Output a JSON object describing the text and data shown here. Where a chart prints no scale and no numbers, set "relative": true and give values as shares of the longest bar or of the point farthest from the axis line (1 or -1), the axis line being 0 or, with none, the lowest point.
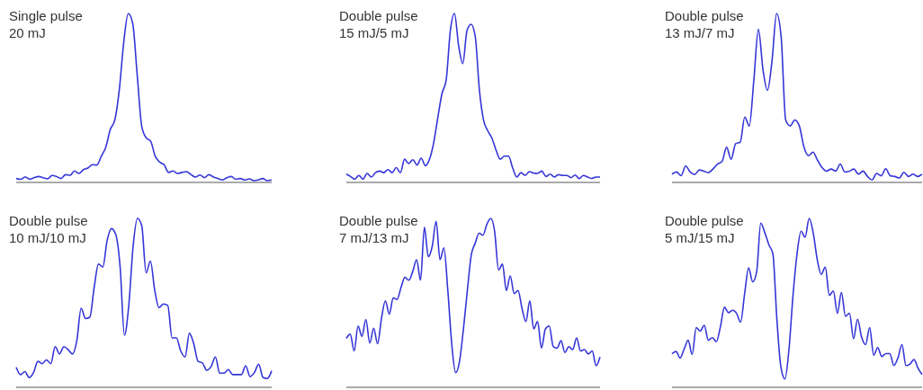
{
  "chart_data": [
    {
      "type": "line",
      "title": "Single pulse",
      "subtitle": "20 mJ",
      "relative": true,
      "categories": [
        null,
        null,
        null,
        null,
        null,
        null,
        null,
        null,
        null,
        null,
        null,
        null,
        null,
        null,
        null,
        null,
        null,
        null,
        null,
        null,
        null,
        null,
        null,
        null,
        null,
        null,
        null,
        null,
        null,
        null,
        null,
        null,
        null,
        null,
        null,
        null,
        null,
        null,
        null,
        null,
        null,
        null,
        null,
        null,
        null,
        null,
        null,
        null,
        null,
        null,
        null,
        null,
        null,
        null,
        null,
        null,
        null,
        null
      ],
      "series": [
        {
          "color": "#3535d8",
          "values": [
            0.018,
            0.013,
            0.027,
            0.014,
            0.023,
            0.03,
            0.023,
            0.016,
            0.036,
            0.03,
            0.018,
            0.041,
            0.036,
            0.063,
            0.048,
            0.071,
            0.08,
            0.1,
            0.098,
            0.152,
            0.205,
            0.31,
            0.366,
            0.545,
            0.83,
            1,
            0.94,
            0.634,
            0.33,
            0.26,
            0.24,
            0.152,
            0.116,
            0.1,
            0.054,
            0.063,
            0.048,
            0.054,
            0.059,
            0.041,
            0.027,
            0.039,
            0.023,
            0.041,
            0.027,
            0.018,
            0.009,
            0.023,
            0.03,
            0.013,
            0.018,
            0.009,
            0.016,
            0.005,
            0.009,
            0.018,
            0.005,
            0.009
          ]
        }
      ]
    },
    {
      "type": "line",
      "title": "Double pulse",
      "subtitle": "15 mJ/5 mJ",
      "relative": true,
      "categories": [
        null,
        null,
        null,
        null,
        null,
        null,
        null,
        null,
        null,
        null,
        null,
        null,
        null,
        null,
        null,
        null,
        null,
        null,
        null,
        null,
        null,
        null,
        null,
        null,
        null,
        null,
        null,
        null,
        null,
        null,
        null,
        null,
        null,
        null,
        null,
        null,
        null,
        null,
        null,
        null,
        null,
        null,
        null,
        null,
        null,
        null,
        null,
        null,
        null,
        null,
        null,
        null,
        null,
        null,
        null,
        null,
        null,
        null,
        null,
        null,
        null,
        null
      ],
      "series": [
        {
          "color": "#3535d8",
          "values": [
            0.044,
            0.03,
            0.014,
            0.036,
            0.014,
            0.048,
            0.027,
            0.053,
            0.062,
            0.053,
            0.071,
            0.053,
            0.083,
            0.053,
            0.133,
            0.107,
            0.13,
            0.098,
            0.139,
            0.094,
            0.133,
            0.231,
            0.382,
            0.524,
            0.604,
            0.897,
            1,
            0.808,
            0.702,
            0.897,
            0.936,
            0.861,
            0.542,
            0.364,
            0.302,
            0.258,
            0.186,
            0.133,
            0.151,
            0.151,
            0.08,
            0.027,
            0.053,
            0.036,
            0.059,
            0.05,
            0.048,
            0.062,
            0.03,
            0.044,
            0.027,
            0.041,
            0.036,
            0.036,
            0.023,
            0.039,
            0.018,
            0.036,
            0.027,
            0.018,
            0.027,
            0.027
          ]
        }
      ]
    },
    {
      "type": "line",
      "title": "Double pulse",
      "subtitle": "13 mJ/7 mJ",
      "relative": true,
      "categories": [
        null,
        null,
        null,
        null,
        null,
        null,
        null,
        null,
        null,
        null,
        null,
        null,
        null,
        null,
        null,
        null,
        null,
        null,
        null,
        null,
        null,
        null,
        null,
        null,
        null,
        null,
        null,
        null,
        null,
        null,
        null,
        null,
        null,
        null,
        null,
        null,
        null,
        null,
        null,
        null,
        null,
        null,
        null,
        null,
        null,
        null,
        null,
        null,
        null,
        null,
        null,
        null,
        null,
        null,
        null,
        null
      ],
      "series": [
        {
          "color": "#3535d8",
          "values": [
            0.044,
            0.057,
            0.035,
            0.092,
            0.057,
            0.042,
            0.069,
            0.062,
            0.053,
            0.074,
            0.104,
            0.119,
            0.204,
            0.133,
            0.225,
            0.234,
            0.384,
            0.331,
            0.605,
            0.906,
            0.667,
            0.543,
            0.72,
            1,
            0.862,
            0.366,
            0.331,
            0.366,
            0.331,
            0.207,
            0.154,
            0.175,
            0.127,
            0.083,
            0.062,
            0.074,
            0.062,
            0.104,
            0.057,
            0.062,
            0.074,
            0.044,
            0.062,
            0.03,
            0.009,
            0.048,
            0.034,
            0.076,
            0.034,
            0.03,
            0.021,
            0.055,
            0.03,
            0.044,
            0.03,
            0.044
          ]
        }
      ]
    },
    {
      "type": "line",
      "title": "Double pulse",
      "subtitle": "10 mJ/10 mJ",
      "relative": true,
      "categories": [
        null,
        null,
        null,
        null,
        null,
        null,
        null,
        null,
        null,
        null,
        null,
        null,
        null,
        null,
        null,
        null,
        null,
        null,
        null,
        null,
        null,
        null,
        null,
        null,
        null,
        null,
        null,
        null,
        null,
        null,
        null,
        null,
        null,
        null,
        null,
        null,
        null,
        null,
        null,
        null,
        null,
        null,
        null,
        null,
        null,
        null,
        null,
        null,
        null,
        null,
        null,
        null,
        null,
        null,
        null,
        null,
        null,
        null,
        null,
        null
      ],
      "series": [
        {
          "color": "#3535d8",
          "values": [
            0.114,
            0.07,
            0.088,
            0.053,
            0.082,
            0.149,
            0.135,
            0.158,
            0.135,
            0.237,
            0.193,
            0.237,
            0.219,
            0.193,
            0.272,
            0.465,
            0.404,
            0.412,
            0.588,
            0.728,
            0.711,
            0.868,
            0.939,
            0.904,
            0.711,
            0.304,
            0.482,
            0.833,
            1,
            0.956,
            0.675,
            0.746,
            0.57,
            0.468,
            0.491,
            0.482,
            0.289,
            0.289,
            0.211,
            0.175,
            0.316,
            0.254,
            0.149,
            0.14,
            0.096,
            0.118,
            0.175,
            0.079,
            0.079,
            0.1,
            0.07,
            0.07,
            0.07,
            0.123,
            0.058,
            0.082,
            0.132,
            0.053,
            0.047,
            0.093
          ]
        }
      ]
    },
    {
      "type": "line",
      "title": "Double pulse",
      "subtitle": "7 mJ/13 mJ",
      "relative": true,
      "categories": [
        null,
        null,
        null,
        null,
        null,
        null,
        null,
        null,
        null,
        null,
        null,
        null,
        null,
        null,
        null,
        null,
        null,
        null,
        null,
        null,
        null,
        null,
        null,
        null,
        null,
        null,
        null,
        null,
        null,
        null,
        null,
        null,
        null,
        null,
        null,
        null,
        null,
        null,
        null,
        null,
        null,
        null,
        null,
        null,
        null,
        null,
        null,
        null,
        null,
        null,
        null,
        null,
        null,
        null,
        null,
        null,
        null,
        null,
        null,
        null,
        null,
        null,
        null,
        null,
        null,
        null
      ],
      "series": [
        {
          "color": "#3535d8",
          "values": [
            0.286,
            0.311,
            0.211,
            0.36,
            0.298,
            0.398,
            0.258,
            0.346,
            0.254,
            0.404,
            0.509,
            0.43,
            0.526,
            0.518,
            0.588,
            0.649,
            0.632,
            0.684,
            0.754,
            0.632,
            0.947,
            0.772,
            0.833,
            0.982,
            0.754,
            0.825,
            0.57,
            0.254,
            0.082,
            0.149,
            0.342,
            0.57,
            0.781,
            0.851,
            0.912,
            0.9,
            0.965,
            1,
            0.921,
            0.693,
            0.728,
            0.57,
            0.658,
            0.553,
            0.57,
            0.465,
            0.386,
            0.509,
            0.342,
            0.386,
            0.228,
            0.342,
            0.36,
            0.237,
            0.228,
            0.272,
            0.202,
            0.237,
            0.219,
            0.289,
            0.211,
            0.219,
            0.193,
            0.211,
            0.123,
            0.175
          ]
        }
      ]
    },
    {
      "type": "line",
      "title": "Double pulse",
      "subtitle": "5 mJ/15 mJ",
      "relative": true,
      "categories": [
        null,
        null,
        null,
        null,
        null,
        null,
        null,
        null,
        null,
        null,
        null,
        null,
        null,
        null,
        null,
        null,
        null,
        null,
        null,
        null,
        null,
        null,
        null,
        null,
        null,
        null,
        null,
        null,
        null,
        null,
        null,
        null,
        null,
        null,
        null,
        null,
        null,
        null,
        null,
        null,
        null,
        null,
        null,
        null,
        null,
        null,
        null,
        null,
        null,
        null,
        null,
        null,
        null,
        null,
        null,
        null,
        null,
        null,
        null,
        null,
        null,
        null,
        null
      ],
      "series": [
        {
          "color": "#3535d8",
          "values": [
            0.195,
            0.208,
            0.169,
            0.222,
            0.275,
            0.19,
            0.35,
            0.329,
            0.364,
            0.275,
            0.29,
            0.266,
            0.355,
            0.471,
            0.439,
            0.453,
            0.435,
            0.382,
            0.551,
            0.705,
            0.622,
            0.684,
            0.972,
            0.915,
            0.844,
            0.79,
            0.4,
            0.115,
            0.044,
            0.222,
            0.542,
            0.79,
            0.924,
            0.888,
            1,
            0.915,
            0.755,
            0.666,
            0.71,
            0.542,
            0.568,
            0.435,
            0.56,
            0.417,
            0.435,
            0.284,
            0.4,
            0.293,
            0.249,
            0.35,
            0.186,
            0.231,
            0.178,
            0.195,
            0.195,
            0.124,
            0.169,
            0.249,
            0.124,
            0.133,
            0.16,
            0.107,
            0.071
          ]
        }
      ]
    }
  ]
}
